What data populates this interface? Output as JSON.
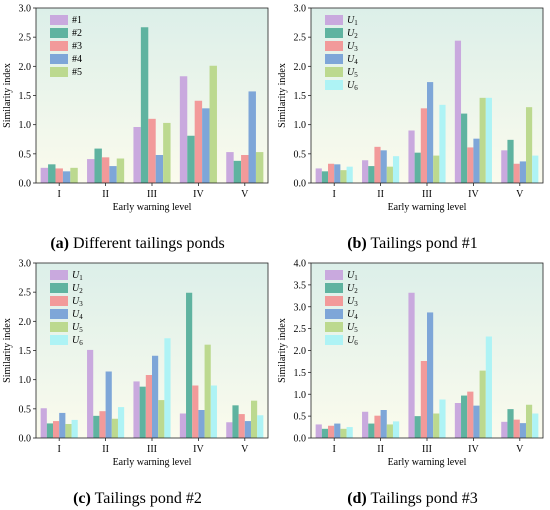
{
  "chart_data": [
    {
      "type": "bar",
      "caption_letter": "(a)",
      "caption_text": "Different tailings ponds",
      "categories": [
        "I",
        "II",
        "III",
        "IV",
        "V"
      ],
      "xlabel": "Early warning level",
      "ylabel": "Similarity index",
      "ylim": [
        0,
        3.0
      ],
      "yticks": [
        "0.0",
        "0.5",
        "1.0",
        "1.5",
        "2.0",
        "2.5",
        "3.0"
      ],
      "legend_position": "top-left",
      "series": [
        {
          "label": "#1",
          "sub": "",
          "color": "#c9a9de",
          "values": [
            0.26,
            0.41,
            0.96,
            1.83,
            0.53
          ]
        },
        {
          "label": "#2",
          "sub": "",
          "color": "#5fb3a0",
          "values": [
            0.32,
            0.59,
            2.67,
            0.81,
            0.38
          ]
        },
        {
          "label": "#3",
          "sub": "",
          "color": "#f29a9a",
          "values": [
            0.25,
            0.44,
            1.1,
            1.41,
            0.48
          ]
        },
        {
          "label": "#4",
          "sub": "",
          "color": "#7ea6d8",
          "values": [
            0.2,
            0.29,
            0.48,
            1.28,
            1.57
          ]
        },
        {
          "label": "#5",
          "sub": "",
          "color": "#bcd98f",
          "values": [
            0.26,
            0.42,
            1.03,
            2.01,
            0.53
          ]
        }
      ]
    },
    {
      "type": "bar",
      "caption_letter": "(b)",
      "caption_text": "Tailings pond #1",
      "categories": [
        "I",
        "II",
        "III",
        "IV",
        "V"
      ],
      "xlabel": "Early warning level",
      "ylabel": "Similarity index",
      "ylim": [
        0,
        3.0
      ],
      "yticks": [
        "0.0",
        "0.5",
        "1.0",
        "1.5",
        "2.0",
        "2.5",
        "3.0"
      ],
      "legend_position": "top-left",
      "series": [
        {
          "label": "U",
          "sub": "1",
          "color": "#c9a9de",
          "values": [
            0.25,
            0.39,
            0.9,
            2.44,
            0.56
          ]
        },
        {
          "label": "U",
          "sub": "2",
          "color": "#5fb3a0",
          "values": [
            0.2,
            0.29,
            0.52,
            1.19,
            0.74
          ]
        },
        {
          "label": "U",
          "sub": "3",
          "color": "#f29a9a",
          "values": [
            0.33,
            0.62,
            1.28,
            0.61,
            0.33
          ]
        },
        {
          "label": "U",
          "sub": "4",
          "color": "#7ea6d8",
          "values": [
            0.32,
            0.56,
            1.73,
            0.76,
            0.37
          ]
        },
        {
          "label": "U",
          "sub": "5",
          "color": "#bcd98f",
          "values": [
            0.22,
            0.28,
            0.47,
            1.46,
            1.3
          ]
        },
        {
          "label": "U",
          "sub": "6",
          "color": "#aef3f5",
          "values": [
            0.28,
            0.46,
            1.34,
            1.46,
            0.47
          ]
        }
      ]
    },
    {
      "type": "bar",
      "caption_letter": "(c)",
      "caption_text": "Tailings pond #2",
      "categories": [
        "I",
        "II",
        "III",
        "IV",
        "V"
      ],
      "xlabel": "Early warning level",
      "ylabel": "Similarity index",
      "ylim": [
        0,
        3.0
      ],
      "yticks": [
        "0.0",
        "0.5",
        "1.0",
        "1.5",
        "2.0",
        "2.5",
        "3.0"
      ],
      "legend_position": "top-left",
      "series": [
        {
          "label": "U",
          "sub": "1",
          "color": "#c9a9de",
          "values": [
            0.51,
            1.51,
            0.97,
            0.42,
            0.27
          ]
        },
        {
          "label": "U",
          "sub": "2",
          "color": "#5fb3a0",
          "values": [
            0.25,
            0.38,
            0.88,
            2.49,
            0.56
          ]
        },
        {
          "label": "U",
          "sub": "3",
          "color": "#f29a9a",
          "values": [
            0.29,
            0.46,
            1.08,
            0.9,
            0.41
          ]
        },
        {
          "label": "U",
          "sub": "4",
          "color": "#7ea6d8",
          "values": [
            0.43,
            1.14,
            1.41,
            0.48,
            0.29
          ]
        },
        {
          "label": "U",
          "sub": "5",
          "color": "#bcd98f",
          "values": [
            0.24,
            0.33,
            0.65,
            1.6,
            0.64
          ]
        },
        {
          "label": "U",
          "sub": "6",
          "color": "#aef3f5",
          "values": [
            0.31,
            0.53,
            1.71,
            0.9,
            0.39
          ]
        }
      ]
    },
    {
      "type": "bar",
      "caption_letter": "(d)",
      "caption_text": "Tailings pond #3",
      "categories": [
        "I",
        "II",
        "III",
        "IV",
        "V"
      ],
      "xlabel": "Early warning level",
      "ylabel": "Similarity index",
      "ylim": [
        0,
        4.0
      ],
      "yticks": [
        "0.0",
        "0.5",
        "1.0",
        "1.5",
        "2.0",
        "2.5",
        "3.0",
        "3.5",
        "4.0"
      ],
      "legend_position": "top-left",
      "series": [
        {
          "label": "U",
          "sub": "1",
          "color": "#c9a9de",
          "values": [
            0.31,
            0.6,
            3.32,
            0.8,
            0.37
          ]
        },
        {
          "label": "U",
          "sub": "2",
          "color": "#5fb3a0",
          "values": [
            0.21,
            0.33,
            0.5,
            0.97,
            0.66
          ]
        },
        {
          "label": "U",
          "sub": "3",
          "color": "#f29a9a",
          "values": [
            0.28,
            0.51,
            1.76,
            1.06,
            0.42
          ]
        },
        {
          "label": "U",
          "sub": "4",
          "color": "#7ea6d8",
          "values": [
            0.33,
            0.64,
            2.87,
            0.74,
            0.34
          ]
        },
        {
          "label": "U",
          "sub": "5",
          "color": "#bcd98f",
          "values": [
            0.21,
            0.31,
            0.56,
            1.54,
            0.76
          ]
        },
        {
          "label": "U",
          "sub": "6",
          "color": "#aef3f5",
          "values": [
            0.25,
            0.38,
            0.88,
            2.32,
            0.56
          ]
        }
      ]
    }
  ]
}
